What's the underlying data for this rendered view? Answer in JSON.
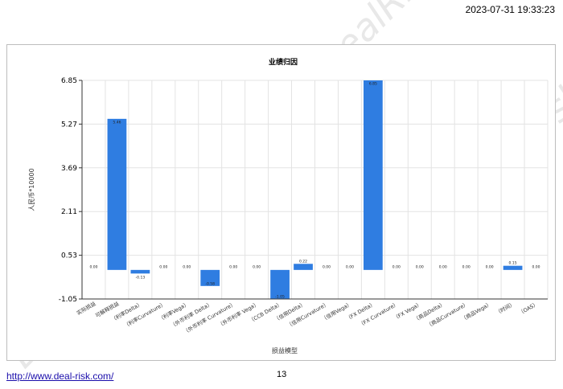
{
  "header": {
    "timestamp": "2023-07-31 19:33:23"
  },
  "footer": {
    "link": "http://www.deal-risk.com/",
    "page_number": "13"
  },
  "watermark": {
    "text": "DealRisk"
  },
  "chart_data": {
    "type": "bar",
    "title": "业绩归因",
    "xlabel": "损益模型",
    "ylabel": "人民币*10000",
    "ylim": [
      -1.05,
      6.85
    ],
    "yticks": [
      "-1.05",
      "0.53",
      "2.11",
      "3.69",
      "5.27",
      "6.85"
    ],
    "grid": true,
    "bar_color": "#2f7de1",
    "categories": [
      "实际损益",
      "可解释损益",
      "（利率Delta）",
      "（利率Curvature）",
      "（利率Vega）",
      "（外币利率 Delta）",
      "（外币利率 Curvature）",
      "（外币利率 Vega）",
      "（CCB Delta）",
      "（信用Delta）",
      "（信用Curvature）",
      "（信用Vega）",
      "（FX Delta）",
      "（FX Curvature）",
      "（FX Vega）",
      "（商品Delta）",
      "（商品Curvature）",
      "（商品Vega）",
      "（时间）",
      "（OAS）"
    ],
    "values": [
      0.0,
      5.46,
      -0.13,
      0.0,
      0.0,
      -0.58,
      0.0,
      0.0,
      -1.05,
      0.22,
      0.0,
      0.0,
      6.85,
      0.0,
      0.0,
      0.0,
      0.0,
      0.0,
      0.15,
      0.0
    ],
    "value_labels": [
      "0.00",
      "5.46",
      "-0.13",
      "0.00",
      "0.00",
      "-0.58",
      "0.00",
      "0.00",
      "-1.05",
      "0.22",
      "0.00",
      "0.00",
      "6.85",
      "0.00",
      "0.00",
      "0.00",
      "0.00",
      "0.00",
      "0.15",
      "0.00"
    ]
  }
}
